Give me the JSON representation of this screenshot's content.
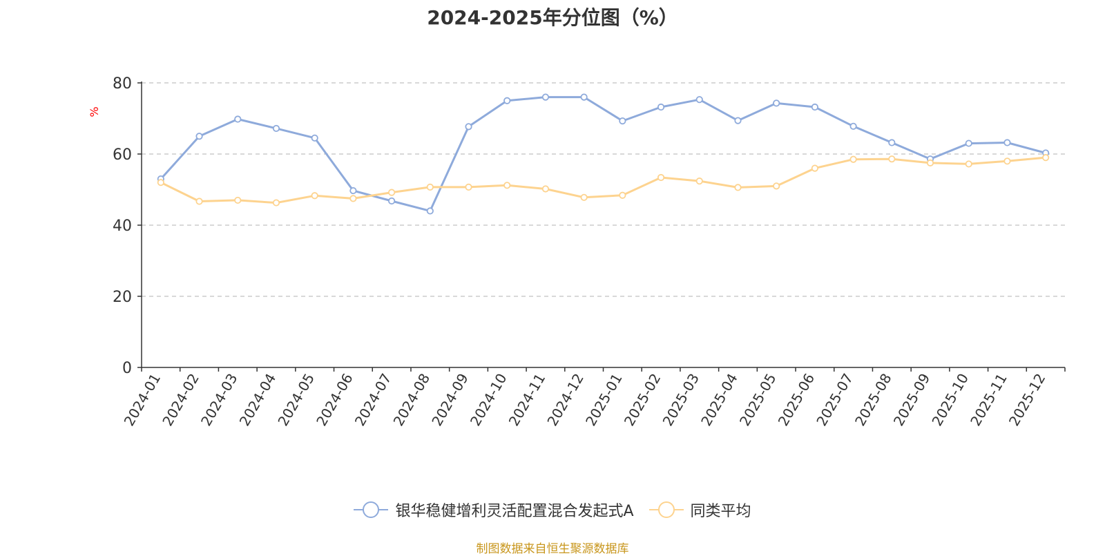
{
  "chart_data": {
    "type": "line",
    "title": "2024-2025年分位图（%）",
    "ylabel": "%",
    "xlabel": "",
    "ylim": [
      0,
      80
    ],
    "yticks": [
      0,
      20,
      40,
      60,
      80
    ],
    "grid": true,
    "legend_position": "bottom",
    "categories": [
      "2024-01",
      "2024-02",
      "2024-03",
      "2024-04",
      "2024-05",
      "2024-06",
      "2024-07",
      "2024-08",
      "2024-09",
      "2024-10",
      "2024-11",
      "2024-12",
      "2025-01",
      "2025-02",
      "2025-03",
      "2025-04",
      "2025-05",
      "2025-06",
      "2025-07",
      "2025-08",
      "2025-09",
      "2025-10",
      "2025-11",
      "2025-12"
    ],
    "series": [
      {
        "name": "银华稳健增利灵活配置混合发起式A",
        "color": "#8eaadb",
        "values": [
          53,
          65,
          69.8,
          67.2,
          64.5,
          49.7,
          46.8,
          44,
          67.7,
          75,
          76,
          76,
          69.3,
          73.2,
          75.3,
          69.4,
          74.3,
          73.2,
          67.8,
          63.2,
          58.6,
          63,
          63.2,
          60.3
        ]
      },
      {
        "name": "同类平均",
        "color": "#fdd38f",
        "values": [
          52,
          46.7,
          47,
          46.3,
          48.3,
          47.5,
          49.2,
          50.7,
          50.7,
          51.2,
          50.2,
          47.8,
          48.4,
          53.4,
          52.4,
          50.6,
          51,
          56,
          58.5,
          58.6,
          57.5,
          57.2,
          58,
          59
        ]
      }
    ]
  },
  "footer": {
    "source": "制图数据来自恒生聚源数据库"
  }
}
